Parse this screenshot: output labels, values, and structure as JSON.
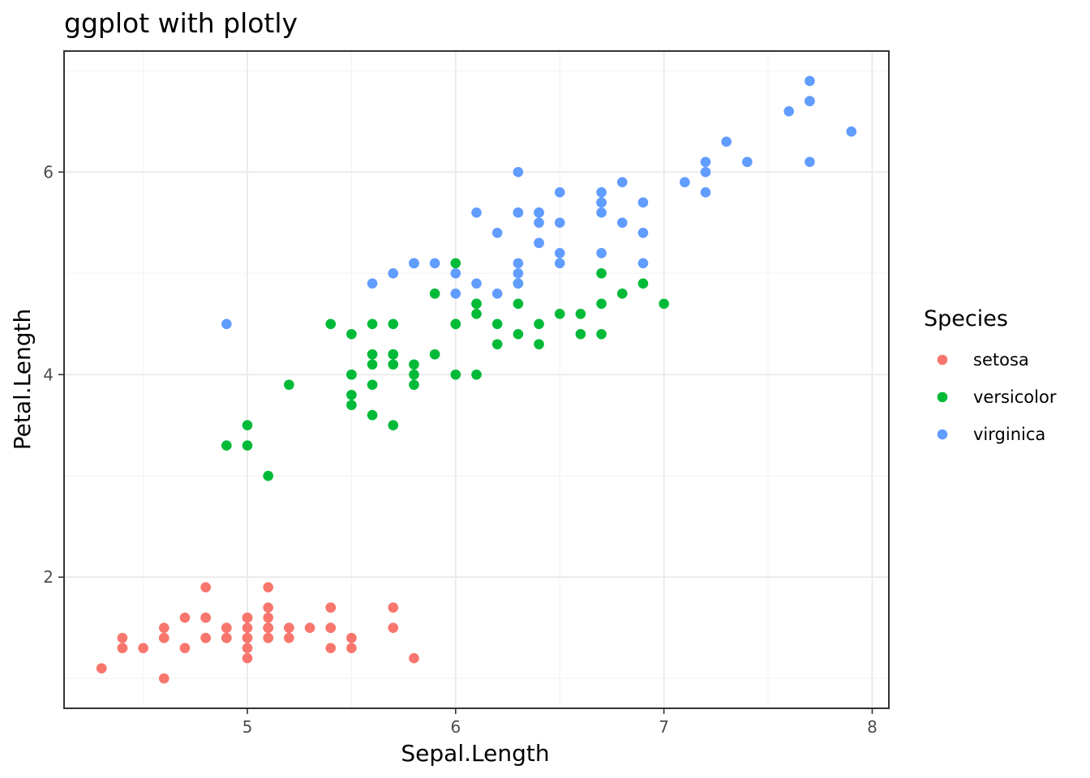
{
  "chart_data": {
    "type": "scatter",
    "title": "ggplot with plotly",
    "xlabel": "Sepal.Length",
    "ylabel": "Petal.Length",
    "xlim": [
      4.12,
      8.08
    ],
    "ylim": [
      0.705,
      7.195
    ],
    "x_ticks": [
      5,
      6,
      7,
      8
    ],
    "x_tick_labels": [
      "5",
      "6",
      "7",
      "8"
    ],
    "x_minor": [
      4.5,
      5.5,
      6.5,
      7.5
    ],
    "y_ticks": [
      2,
      4,
      6
    ],
    "y_tick_labels": [
      "2",
      "4",
      "6"
    ],
    "y_minor": [
      1,
      3,
      5,
      7
    ],
    "grid": true,
    "legend": {
      "title": "Species",
      "position": "right"
    },
    "series": [
      {
        "name": "setosa",
        "color": "#F8766D",
        "points": [
          [
            5.1,
            1.4
          ],
          [
            4.9,
            1.4
          ],
          [
            4.7,
            1.3
          ],
          [
            4.6,
            1.5
          ],
          [
            5.0,
            1.4
          ],
          [
            5.4,
            1.7
          ],
          [
            4.6,
            1.4
          ],
          [
            5.0,
            1.5
          ],
          [
            4.4,
            1.4
          ],
          [
            4.9,
            1.5
          ],
          [
            5.4,
            1.5
          ],
          [
            4.8,
            1.6
          ],
          [
            4.8,
            1.4
          ],
          [
            4.3,
            1.1
          ],
          [
            5.8,
            1.2
          ],
          [
            5.7,
            1.5
          ],
          [
            5.4,
            1.3
          ],
          [
            5.1,
            1.4
          ],
          [
            5.7,
            1.7
          ],
          [
            5.1,
            1.5
          ],
          [
            5.4,
            1.7
          ],
          [
            5.1,
            1.5
          ],
          [
            4.6,
            1.0
          ],
          [
            5.1,
            1.7
          ],
          [
            4.8,
            1.9
          ],
          [
            5.0,
            1.6
          ],
          [
            5.0,
            1.6
          ],
          [
            5.2,
            1.5
          ],
          [
            5.2,
            1.4
          ],
          [
            4.7,
            1.6
          ],
          [
            4.8,
            1.6
          ],
          [
            5.4,
            1.5
          ],
          [
            5.2,
            1.5
          ],
          [
            5.5,
            1.4
          ],
          [
            4.9,
            1.5
          ],
          [
            5.0,
            1.2
          ],
          [
            5.5,
            1.3
          ],
          [
            4.9,
            1.4
          ],
          [
            4.4,
            1.3
          ],
          [
            5.1,
            1.5
          ],
          [
            5.0,
            1.3
          ],
          [
            4.5,
            1.3
          ],
          [
            4.4,
            1.3
          ],
          [
            5.0,
            1.6
          ],
          [
            5.1,
            1.9
          ],
          [
            4.8,
            1.4
          ],
          [
            5.1,
            1.6
          ],
          [
            4.6,
            1.4
          ],
          [
            5.3,
            1.5
          ],
          [
            5.0,
            1.4
          ]
        ]
      },
      {
        "name": "versicolor",
        "color": "#00BA38",
        "points": [
          [
            7.0,
            4.7
          ],
          [
            6.4,
            4.5
          ],
          [
            6.9,
            4.9
          ],
          [
            5.5,
            4.0
          ],
          [
            6.5,
            4.6
          ],
          [
            5.7,
            4.5
          ],
          [
            6.3,
            4.7
          ],
          [
            4.9,
            3.3
          ],
          [
            6.6,
            4.6
          ],
          [
            5.2,
            3.9
          ],
          [
            5.0,
            3.5
          ],
          [
            5.9,
            4.2
          ],
          [
            6.0,
            4.0
          ],
          [
            6.1,
            4.7
          ],
          [
            5.6,
            3.6
          ],
          [
            6.7,
            4.4
          ],
          [
            5.6,
            4.5
          ],
          [
            5.8,
            4.1
          ],
          [
            6.2,
            4.5
          ],
          [
            5.6,
            3.9
          ],
          [
            5.9,
            4.8
          ],
          [
            6.1,
            4.0
          ],
          [
            6.3,
            4.9
          ],
          [
            6.1,
            4.7
          ],
          [
            6.4,
            4.3
          ],
          [
            6.6,
            4.4
          ],
          [
            6.8,
            4.8
          ],
          [
            6.7,
            5.0
          ],
          [
            6.0,
            4.5
          ],
          [
            5.7,
            3.5
          ],
          [
            5.5,
            3.8
          ],
          [
            5.5,
            3.7
          ],
          [
            5.8,
            3.9
          ],
          [
            6.0,
            5.1
          ],
          [
            5.4,
            4.5
          ],
          [
            6.0,
            4.5
          ],
          [
            6.7,
            4.7
          ],
          [
            6.3,
            4.4
          ],
          [
            5.6,
            4.1
          ],
          [
            5.5,
            4.0
          ],
          [
            5.5,
            4.4
          ],
          [
            6.1,
            4.6
          ],
          [
            5.8,
            4.0
          ],
          [
            5.0,
            3.3
          ],
          [
            5.6,
            4.2
          ],
          [
            5.7,
            4.2
          ],
          [
            5.7,
            4.2
          ],
          [
            6.2,
            4.3
          ],
          [
            5.1,
            3.0
          ],
          [
            5.7,
            4.1
          ]
        ]
      },
      {
        "name": "virginica",
        "color": "#619CFF",
        "points": [
          [
            6.3,
            6.0
          ],
          [
            5.8,
            5.1
          ],
          [
            7.1,
            5.9
          ],
          [
            6.3,
            5.6
          ],
          [
            6.5,
            5.8
          ],
          [
            7.6,
            6.6
          ],
          [
            4.9,
            4.5
          ],
          [
            7.3,
            6.3
          ],
          [
            6.7,
            5.8
          ],
          [
            7.2,
            6.1
          ],
          [
            6.5,
            5.1
          ],
          [
            6.4,
            5.3
          ],
          [
            6.8,
            5.5
          ],
          [
            5.7,
            5.0
          ],
          [
            5.8,
            5.1
          ],
          [
            6.4,
            5.3
          ],
          [
            6.5,
            5.5
          ],
          [
            7.7,
            6.7
          ],
          [
            7.7,
            6.9
          ],
          [
            6.0,
            5.0
          ],
          [
            6.9,
            5.7
          ],
          [
            5.6,
            4.9
          ],
          [
            7.7,
            6.7
          ],
          [
            6.3,
            4.9
          ],
          [
            6.7,
            5.7
          ],
          [
            7.2,
            6.0
          ],
          [
            6.2,
            4.8
          ],
          [
            6.1,
            4.9
          ],
          [
            6.4,
            5.6
          ],
          [
            7.2,
            5.8
          ],
          [
            7.4,
            6.1
          ],
          [
            7.9,
            6.4
          ],
          [
            6.4,
            5.6
          ],
          [
            6.3,
            5.1
          ],
          [
            6.1,
            5.6
          ],
          [
            7.7,
            6.1
          ],
          [
            6.3,
            5.6
          ],
          [
            6.4,
            5.5
          ],
          [
            6.0,
            4.8
          ],
          [
            6.9,
            5.4
          ],
          [
            6.7,
            5.6
          ],
          [
            6.9,
            5.1
          ],
          [
            5.8,
            5.1
          ],
          [
            6.8,
            5.9
          ],
          [
            6.7,
            5.7
          ],
          [
            6.7,
            5.2
          ],
          [
            6.3,
            5.0
          ],
          [
            6.5,
            5.2
          ],
          [
            6.2,
            5.4
          ],
          [
            5.9,
            5.1
          ]
        ]
      }
    ]
  }
}
